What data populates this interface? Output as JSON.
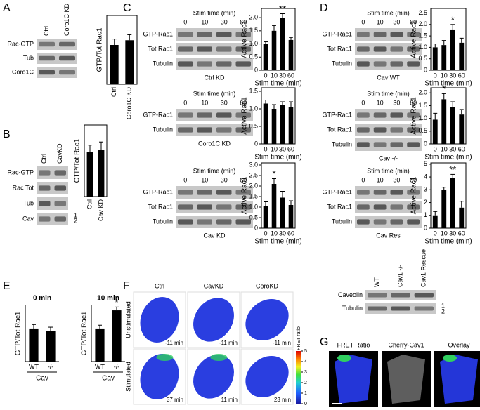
{
  "panel_letters": [
    "A",
    "B",
    "C",
    "D",
    "E",
    "F",
    "G"
  ],
  "chart_data": [
    {
      "type": "bar",
      "y_label": "GTP/Tot Rac1",
      "categories": [
        "Ctrl",
        "Coro1C KD"
      ],
      "values": [
        1.0,
        1.12
      ],
      "errors": [
        0.15,
        0.14
      ],
      "ylim": [
        0,
        1.75
      ]
    },
    {
      "type": "bar",
      "y_label": "GTP/Tot Rac1",
      "categories": [
        "Ctrl",
        "Cav KD"
      ],
      "values": [
        1.0,
        1.05
      ],
      "errors": [
        0.15,
        0.17
      ],
      "ylim": [
        0,
        1.6
      ]
    },
    {
      "type": "bar",
      "y_label": "Active Rac1",
      "x_label": "Stim time (min)",
      "categories": [
        "0",
        "10",
        "30",
        "60"
      ],
      "values": [
        1.0,
        1.5,
        2.0,
        1.15
      ],
      "errors": [
        0.08,
        0.2,
        0.15,
        0.1
      ],
      "value_annotations": [
        null,
        null,
        "**",
        null
      ],
      "ylim": [
        0,
        2.35
      ],
      "yticks": [
        0,
        0.5,
        {
          "value": 1,
          "label": "1.0"
        },
        1.5,
        {
          "value": 2,
          "label": "2.0"
        }
      ]
    },
    {
      "type": "bar",
      "y_label": "Active Rac1",
      "x_label": "Stim time (min)",
      "categories": [
        "0",
        "10",
        "30",
        "60"
      ],
      "values": [
        1.15,
        1.0,
        1.1,
        1.05
      ],
      "errors": [
        0.1,
        0.12,
        0.1,
        0.15
      ],
      "ylim": [
        0,
        1.6
      ],
      "yticks": [
        0,
        0.5,
        {
          "value": 1,
          "label": "1.0"
        },
        1.5
      ]
    },
    {
      "type": "bar",
      "y_label": "Active Rac1",
      "x_label": "Stim time (min)",
      "categories": [
        "0",
        "10",
        "30",
        "60"
      ],
      "values": [
        1.05,
        2.1,
        1.45,
        1.1
      ],
      "errors": [
        0.2,
        0.25,
        0.3,
        0.2
      ],
      "value_annotations": [
        null,
        "*",
        null,
        null
      ],
      "ylim": [
        0,
        3.1
      ],
      "yticks": [
        0,
        0.5,
        {
          "value": 1,
          "label": "1.0"
        },
        1.5,
        {
          "value": 2,
          "label": "2.0"
        },
        2.5,
        {
          "value": 3,
          "label": "3.0"
        }
      ]
    },
    {
      "type": "bar",
      "y_label": "Active Rac1",
      "x_label": "Stim time (min)",
      "categories": [
        "0",
        "10",
        "30",
        "60"
      ],
      "values": [
        1.0,
        1.1,
        1.75,
        1.2
      ],
      "errors": [
        0.15,
        0.2,
        0.25,
        0.2
      ],
      "value_annotations": [
        null,
        null,
        "*",
        null
      ],
      "ylim": [
        0,
        2.7
      ],
      "yticks": [
        0,
        0.5,
        {
          "value": 1,
          "label": "1.0"
        },
        1.5,
        {
          "value": 2,
          "label": "2.0"
        },
        2.5
      ]
    },
    {
      "type": "bar",
      "y_label": "Active Rac1",
      "x_label": "Stim time (min)",
      "categories": [
        "0",
        "10",
        "30",
        "60"
      ],
      "values": [
        0.95,
        1.75,
        1.45,
        1.15
      ],
      "errors": [
        0.25,
        0.22,
        0.2,
        0.2
      ],
      "value_annotations": [
        null,
        "*",
        null,
        null
      ],
      "ylim": [
        0,
        2.2
      ],
      "yticks": [
        0,
        0.5,
        {
          "value": 1,
          "label": "1.0"
        },
        1.5,
        {
          "value": 2,
          "label": "2.0"
        }
      ]
    },
    {
      "type": "bar",
      "y_label": "Active Rac1",
      "x_label": "Stim time (min)",
      "categories": [
        "0",
        "10",
        "30",
        "60"
      ],
      "values": [
        1.0,
        3.0,
        3.9,
        1.6
      ],
      "errors": [
        0.3,
        0.2,
        0.3,
        0.5
      ],
      "value_annotations": [
        null,
        null,
        "**",
        null
      ],
      "ylim": [
        0,
        5.1
      ],
      "yticks": [
        0,
        1,
        2,
        3,
        4,
        5
      ]
    },
    {
      "type": "bar",
      "title": "0 min",
      "y_label": "GTP/Tot Rac1",
      "group_label": "Cav",
      "categories": [
        "WT",
        "-/-"
      ],
      "values": [
        1.0,
        0.92
      ],
      "errors": [
        0.12,
        0.12
      ],
      "ylim": [
        0,
        1.7
      ]
    },
    {
      "type": "bar",
      "title": "10 min",
      "y_label": "GTP/Tot Rac1",
      "group_label": "Cav",
      "categories": [
        "WT",
        "-/-"
      ],
      "values": [
        1.0,
        1.55
      ],
      "errors": [
        0.1,
        0.1
      ],
      "value_annotations": [
        null,
        "*"
      ],
      "ylim": [
        0,
        1.7
      ]
    }
  ],
  "blots": [
    {
      "lanes": [
        "Ctrl",
        "Coro1C KD"
      ],
      "rows": [
        "Rac-GTP",
        "Tub",
        "Coro1C"
      ]
    },
    {
      "lanes": [
        "Ctrl",
        "CavKD"
      ],
      "rows": [
        "Rac-GTP",
        "Rac Tot",
        "Tub",
        "Cav"
      ],
      "markers": [
        "1",
        "2"
      ]
    },
    {
      "header": "Stim time (min)",
      "lanes": [
        "0",
        "10",
        "30",
        "60"
      ],
      "rows": [
        "GTP-Rac1",
        "Tot Rac1",
        "Tubulin"
      ],
      "caption": "Ctrl KD"
    },
    {
      "header": "Stim time (min)",
      "lanes": [
        "0",
        "10",
        "30",
        "60"
      ],
      "rows": [
        "GTP-Rac1",
        "Tubulin"
      ],
      "caption": "Coro1C KD"
    },
    {
      "header": "Stim time (min)",
      "lanes": [
        "0",
        "10",
        "30",
        "60"
      ],
      "rows": [
        "GTP-Rac1",
        "Tot Rac1",
        "Tubulin"
      ],
      "caption": "Cav KD"
    },
    {
      "header": "Stim time (min)",
      "lanes": [
        "0",
        "10",
        "30",
        "60"
      ],
      "rows": [
        "GTP-Rac1",
        "Tot Rac1",
        "Tubulin"
      ],
      "caption": "Cav WT"
    },
    {
      "header": "Stim time (min)",
      "lanes": [
        "0",
        "10",
        "30",
        "60"
      ],
      "rows": [
        "GTP-Rac1",
        "Tot Rac1",
        "Tubulin"
      ],
      "caption": "Cav -/-"
    },
    {
      "header": "Stim time (min)",
      "lanes": [
        "0",
        "10",
        "30",
        "60"
      ],
      "rows": [
        "GTP-Rac1",
        "Tot Rac1",
        "Tubulin"
      ],
      "caption": "Cav Res"
    },
    {
      "lanes": [
        "WT",
        "Cav1 -/-",
        "Cav1 Rescue"
      ],
      "rows": [
        "Caveolin",
        "Tubulin"
      ],
      "markers": [
        "1",
        "2"
      ]
    }
  ],
  "imaging": {
    "columns": [
      "Ctrl",
      "CavKD",
      "CoroKD"
    ],
    "rows": [
      "Unstimulated",
      "Stimulated"
    ],
    "times": [
      [
        "-11 min",
        "-11 min",
        "-11 min"
      ],
      [
        "37 min",
        "11 min",
        "23 min"
      ]
    ],
    "colorbar": {
      "label": "FRET ratio",
      "ticks": [
        0,
        1,
        2,
        3,
        4,
        5
      ]
    }
  },
  "overlay": {
    "titles": [
      "FRET Ratio",
      "Cherry-Cav1",
      "Overlay"
    ]
  }
}
